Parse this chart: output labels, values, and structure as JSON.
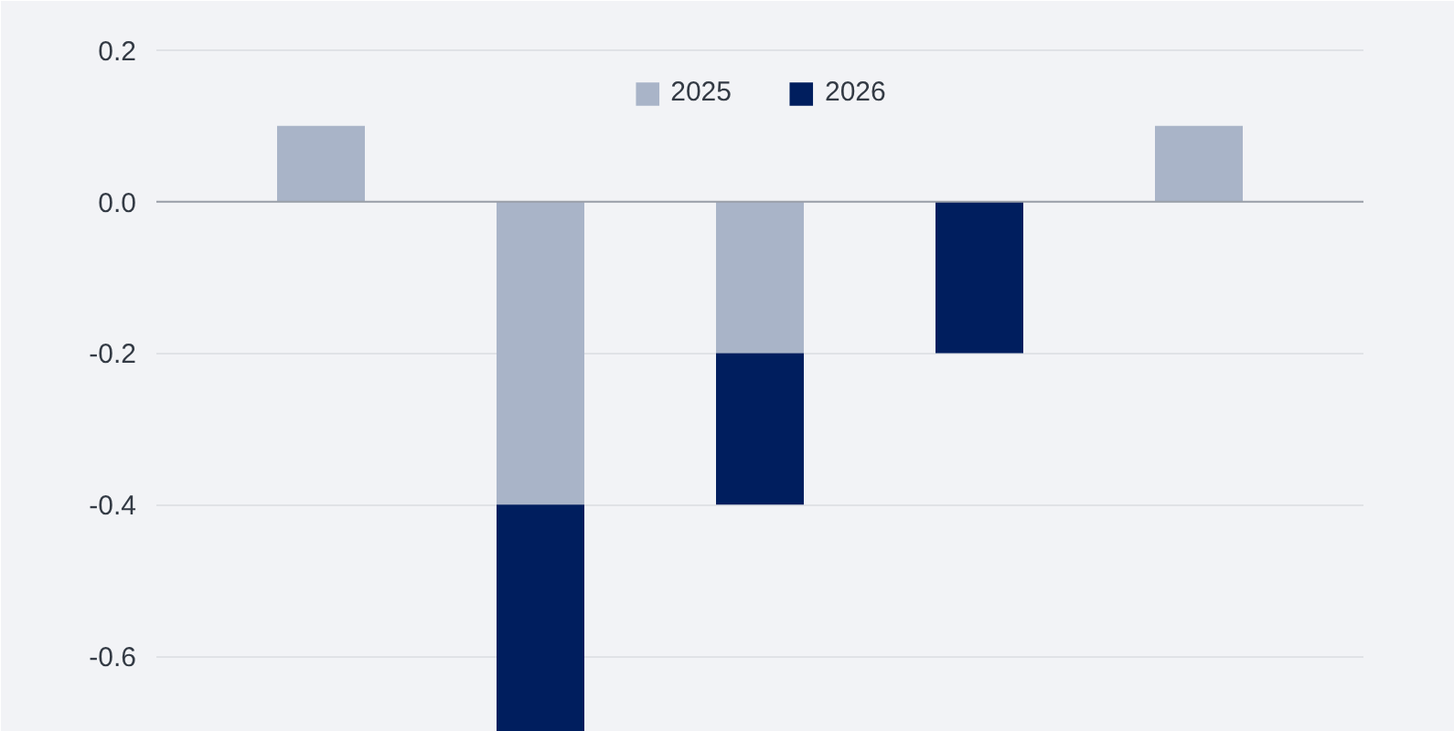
{
  "chart_data": {
    "type": "bar",
    "stacked": true,
    "categories": [
      null,
      null,
      null,
      null,
      null
    ],
    "series": [
      {
        "name": "2025",
        "color": "#a9b4c8",
        "values": [
          0.1,
          -0.4,
          -0.2,
          null,
          0.1
        ]
      },
      {
        "name": "2026",
        "color": "#001e5e",
        "values": [
          null,
          -0.3,
          -0.2,
          -0.2,
          null
        ]
      }
    ],
    "ylim": [
      -0.7,
      0.265
    ],
    "yticks": [
      {
        "value": -0.6,
        "label": "-0.6"
      },
      {
        "value": -0.4,
        "label": "-0.4"
      },
      {
        "value": -0.2,
        "label": "-0.2"
      },
      {
        "value": 0,
        "label": "0.0"
      },
      {
        "value": 0.2,
        "label": "0.2"
      }
    ],
    "grid": "y",
    "legend": "top",
    "tick_labels": "y",
    "ref_lines": [
      {
        "axis": "y",
        "value": 0,
        "label": null,
        "color": "#9a9fa8"
      }
    ]
  }
}
